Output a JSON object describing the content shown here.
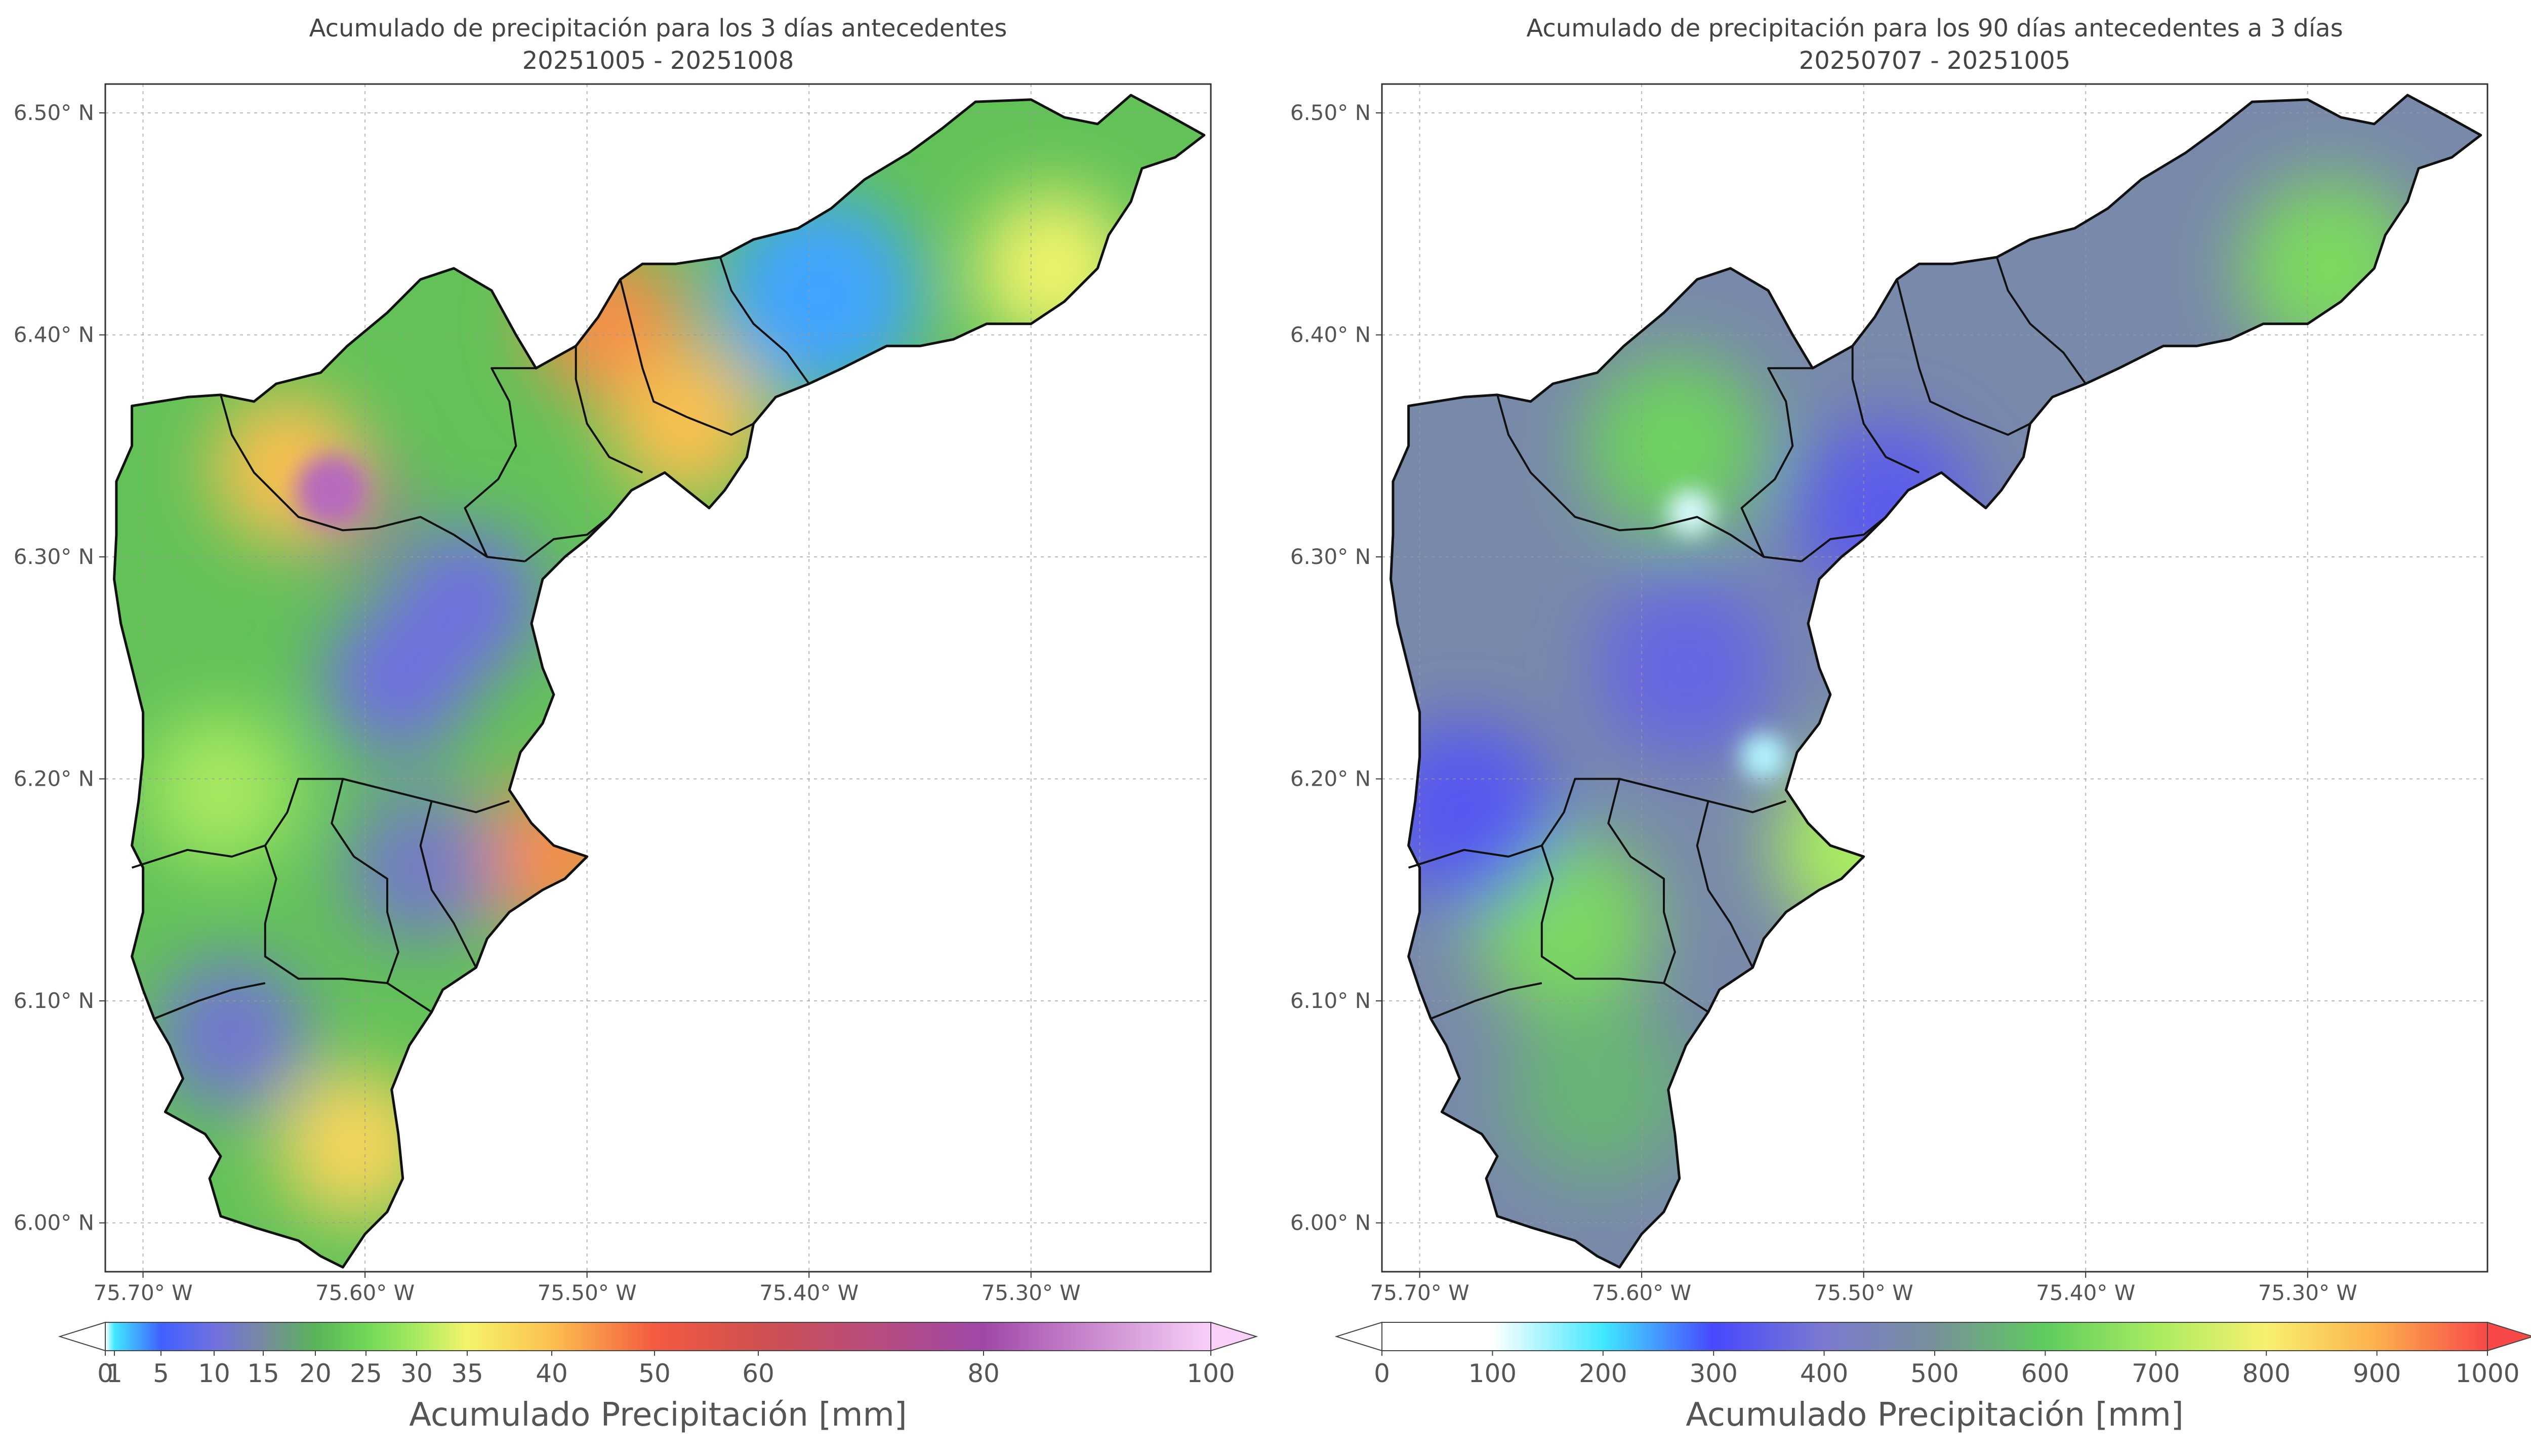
{
  "chart_data": [
    {
      "type": "heatmap",
      "title": "Acumulado de precipitación para los 3 días antecedentes",
      "subtitle": "20251005 - 20251008",
      "x_ticks": [
        "75.70° W",
        "75.60° W",
        "75.50° W",
        "75.40° W",
        "75.30° W"
      ],
      "x_tick_values": [
        -75.7,
        -75.6,
        -75.5,
        -75.4,
        -75.3
      ],
      "y_ticks": [
        "6.50° N",
        "6.40° N",
        "6.30° N",
        "6.20° N",
        "6.10° N",
        "6.00° N"
      ],
      "y_tick_values": [
        6.5,
        6.4,
        6.3,
        6.2,
        6.1,
        6.0
      ],
      "xlim": [
        -75.717,
        -75.219
      ],
      "ylim": [
        5.978,
        6.513
      ],
      "grid": true,
      "colorbar": {
        "label": "Acumulado Precipitación [mm]",
        "ticks": [
          "0",
          "1",
          "5",
          "10",
          "15",
          "20",
          "25",
          "30",
          "35",
          "40",
          "50",
          "60",
          "80",
          "100"
        ],
        "tick_values": [
          0,
          1,
          5,
          10,
          15,
          20,
          25,
          30,
          35,
          40,
          50,
          60,
          80,
          100
        ],
        "colors": [
          "#ffffff",
          "#40e8ff",
          "#4060ff",
          "#7070e0",
          "#788aa0",
          "#58b458",
          "#70d858",
          "#a8ea60",
          "#f4f46c",
          "#fcc050",
          "#f45a40",
          "#d05050",
          "#a048a8",
          "#f8d0f8"
        ],
        "extend": "both"
      },
      "hotspots": [
        {
          "lon": -75.615,
          "lat": 6.328,
          "value": 80
        },
        {
          "lon": -75.635,
          "lat": 6.34,
          "value": 40
        },
        {
          "lon": -75.395,
          "lat": 6.418,
          "value": 3
        },
        {
          "lon": -75.555,
          "lat": 6.28,
          "value": 10
        },
        {
          "lon": -75.585,
          "lat": 6.245,
          "value": 10
        },
        {
          "lon": -75.29,
          "lat": 6.43,
          "value": 35
        },
        {
          "lon": -75.605,
          "lat": 6.035,
          "value": 38
        },
        {
          "lon": -75.515,
          "lat": 6.165,
          "value": 45
        },
        {
          "lon": -75.49,
          "lat": 6.405,
          "value": 45
        },
        {
          "lon": -75.455,
          "lat": 6.36,
          "value": 40
        },
        {
          "lon": -75.665,
          "lat": 6.195,
          "value": 30
        },
        {
          "lon": -75.66,
          "lat": 6.085,
          "value": 11
        },
        {
          "lon": -75.575,
          "lat": 6.16,
          "value": 12
        }
      ]
    },
    {
      "type": "heatmap",
      "title": "Acumulado de precipitación para los 90 días antecedentes a 3 días",
      "subtitle": "20250707 - 20251005",
      "x_ticks": [
        "75.70° W",
        "75.60° W",
        "75.50° W",
        "75.40° W",
        "75.30° W"
      ],
      "x_tick_values": [
        -75.7,
        -75.6,
        -75.5,
        -75.4,
        -75.3
      ],
      "y_ticks": [
        "6.50° N",
        "6.40° N",
        "6.30° N",
        "6.20° N",
        "6.10° N",
        "6.00° N"
      ],
      "y_tick_values": [
        6.5,
        6.4,
        6.3,
        6.2,
        6.1,
        6.0
      ],
      "xlim": [
        -75.717,
        -75.219
      ],
      "ylim": [
        5.978,
        6.513
      ],
      "grid": true,
      "colorbar": {
        "label": "Acumulado Precipitación [mm]",
        "ticks": [
          "0",
          "100",
          "200",
          "300",
          "400",
          "500",
          "600",
          "700",
          "800",
          "900",
          "1000"
        ],
        "tick_values": [
          0,
          100,
          200,
          300,
          400,
          500,
          600,
          700,
          800,
          900,
          1000
        ],
        "colors": [
          "#ffffff",
          "#ffffff",
          "#40e8ff",
          "#4848ff",
          "#7a7ad0",
          "#78909a",
          "#5ecc5e",
          "#a8ec60",
          "#f8f070",
          "#fcb04c",
          "#f84848"
        ],
        "extend": "both"
      },
      "hotspots": [
        {
          "lon": -75.578,
          "lat": 6.32,
          "value": 120
        },
        {
          "lon": -75.545,
          "lat": 6.21,
          "value": 140
        },
        {
          "lon": -75.585,
          "lat": 6.35,
          "value": 620
        },
        {
          "lon": -75.5,
          "lat": 6.17,
          "value": 700
        },
        {
          "lon": -75.29,
          "lat": 6.43,
          "value": 640
        },
        {
          "lon": -75.635,
          "lat": 6.135,
          "value": 640
        },
        {
          "lon": -75.58,
          "lat": 6.25,
          "value": 360
        },
        {
          "lon": -75.68,
          "lat": 6.185,
          "value": 330
        },
        {
          "lon": -75.49,
          "lat": 6.32,
          "value": 340
        },
        {
          "lon": -75.62,
          "lat": 6.06,
          "value": 560
        }
      ]
    }
  ]
}
